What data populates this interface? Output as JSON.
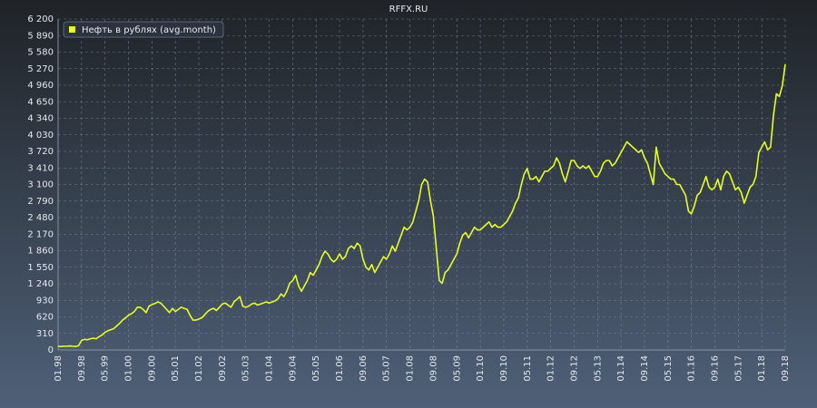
{
  "chart_data": {
    "type": "line",
    "title": "RFFX.RU",
    "categories": [
      "01.98",
      null,
      null,
      null,
      null,
      null,
      null,
      null,
      "09.98",
      null,
      null,
      null,
      null,
      null,
      null,
      null,
      "05.99",
      null,
      null,
      null,
      null,
      null,
      null,
      null,
      "01.00",
      null,
      null,
      null,
      null,
      null,
      null,
      null,
      "09.00",
      null,
      null,
      null,
      null,
      null,
      null,
      null,
      "05.01",
      null,
      null,
      null,
      null,
      null,
      null,
      null,
      "01.02",
      null,
      null,
      null,
      null,
      null,
      null,
      null,
      "09.02",
      null,
      null,
      null,
      null,
      null,
      null,
      null,
      "05.03",
      null,
      null,
      null,
      null,
      null,
      null,
      null,
      "01.04",
      null,
      null,
      null,
      null,
      null,
      null,
      null,
      "09.04",
      null,
      null,
      null,
      null,
      null,
      null,
      null,
      "05.05",
      null,
      null,
      null,
      null,
      null,
      null,
      null,
      "01.06",
      null,
      null,
      null,
      null,
      null,
      null,
      null,
      "09.06",
      null,
      null,
      null,
      null,
      null,
      null,
      null,
      "05.07",
      null,
      null,
      null,
      null,
      null,
      null,
      null,
      "01.08",
      null,
      null,
      null,
      null,
      null,
      null,
      null,
      "09.08",
      null,
      null,
      null,
      null,
      null,
      null,
      null,
      "05.09",
      null,
      null,
      null,
      null,
      null,
      null,
      null,
      "01.10",
      null,
      null,
      null,
      null,
      null,
      null,
      null,
      "09.10",
      null,
      null,
      null,
      null,
      null,
      null,
      null,
      "05.11",
      null,
      null,
      null,
      null,
      null,
      null,
      null,
      "01.12",
      null,
      null,
      null,
      null,
      null,
      null,
      null,
      "09.12",
      null,
      null,
      null,
      null,
      null,
      null,
      null,
      "05.13",
      null,
      null,
      null,
      null,
      null,
      null,
      null,
      "01.14",
      null,
      null,
      null,
      null,
      null,
      null,
      null,
      "09.14",
      null,
      null,
      null,
      null,
      null,
      null,
      null,
      "05.15",
      null,
      null,
      null,
      null,
      null,
      null,
      null,
      "01.16",
      null,
      null,
      null,
      null,
      null,
      null,
      null,
      "09.16",
      null,
      null,
      null,
      null,
      null,
      null,
      null,
      "05.17",
      null,
      null,
      null,
      null,
      null,
      null,
      null,
      "01.18",
      null,
      null,
      null,
      null,
      null,
      null,
      null,
      "09.18"
    ],
    "series": [
      {
        "name": "Нефть в рублях (avg.month)",
        "color": "#e8ff1a",
        "values": [
          70,
          65,
          70,
          70,
          75,
          70,
          65,
          80,
          180,
          200,
          190,
          210,
          220,
          210,
          250,
          280,
          330,
          360,
          380,
          400,
          450,
          500,
          560,
          600,
          650,
          680,
          720,
          800,
          800,
          760,
          700,
          820,
          850,
          870,
          900,
          880,
          820,
          760,
          700,
          780,
          720,
          760,
          800,
          780,
          760,
          650,
          560,
          560,
          580,
          600,
          660,
          720,
          760,
          780,
          740,
          800,
          860,
          880,
          840,
          800,
          900,
          950,
          1000,
          820,
          800,
          820,
          860,
          880,
          840,
          860,
          880,
          900,
          880,
          900,
          920,
          960,
          1050,
          1000,
          1100,
          1250,
          1300,
          1400,
          1200,
          1100,
          1200,
          1300,
          1450,
          1400,
          1500,
          1600,
          1750,
          1850,
          1800,
          1700,
          1650,
          1700,
          1800,
          1700,
          1750,
          1900,
          1950,
          1900,
          2000,
          1950,
          1700,
          1550,
          1500,
          1600,
          1450,
          1550,
          1650,
          1750,
          1700,
          1800,
          1950,
          1850,
          2000,
          2150,
          2300,
          2250,
          2300,
          2400,
          2600,
          2800,
          3100,
          3200,
          3150,
          2800,
          2500,
          1900,
          1300,
          1250,
          1450,
          1500,
          1600,
          1700,
          1800,
          2000,
          2150,
          2200,
          2100,
          2200,
          2300,
          2250,
          2250,
          2300,
          2350,
          2400,
          2300,
          2350,
          2300,
          2300,
          2350,
          2400,
          2500,
          2600,
          2750,
          2850,
          3100,
          3300,
          3400,
          3200,
          3200,
          3250,
          3150,
          3250,
          3350,
          3350,
          3400,
          3450,
          3600,
          3500,
          3300,
          3150,
          3350,
          3550,
          3550,
          3450,
          3400,
          3450,
          3400,
          3450,
          3350,
          3250,
          3250,
          3350,
          3500,
          3550,
          3550,
          3450,
          3500,
          3600,
          3700,
          3800,
          3900,
          3850,
          3800,
          3750,
          3700,
          3750,
          3600,
          3500,
          3300,
          3100,
          3800,
          3500,
          3400,
          3300,
          3250,
          3200,
          3200,
          3100,
          3100,
          3000,
          2900,
          2600,
          2550,
          2700,
          2900,
          2950,
          3100,
          3250,
          3050,
          3000,
          3050,
          3200,
          3000,
          3250,
          3350,
          3300,
          3150,
          3000,
          3050,
          2950,
          2750,
          2900,
          3050,
          3100,
          3250,
          3700,
          3800,
          3900,
          3750,
          3800,
          4400,
          4800,
          4750,
          4950,
          5350
        ]
      }
    ],
    "ylim": [
      0,
      6200
    ],
    "yticks": [
      0,
      310,
      620,
      930,
      {
        "value": 1240,
        "label": "1 240"
      },
      {
        "value": 1550,
        "label": "1 550"
      },
      {
        "value": 1860,
        "label": "1 860"
      },
      {
        "value": 2170,
        "label": "2 170"
      },
      {
        "value": 2480,
        "label": "2 480"
      },
      {
        "value": 2790,
        "label": "2 790"
      },
      {
        "value": 3100,
        "label": "3 100"
      },
      {
        "value": 3410,
        "label": "3 410"
      },
      {
        "value": 3720,
        "label": "3 720"
      },
      {
        "value": 4030,
        "label": "4 030"
      },
      {
        "value": 4340,
        "label": "4 340"
      },
      {
        "value": 4650,
        "label": "4 650"
      },
      {
        "value": 4960,
        "label": "4 960"
      },
      {
        "value": 5270,
        "label": "5 270"
      },
      {
        "value": 5580,
        "label": "5 580"
      },
      {
        "value": 5890,
        "label": "5 890"
      },
      {
        "value": 6200,
        "label": "6 200"
      }
    ],
    "grid": true
  }
}
